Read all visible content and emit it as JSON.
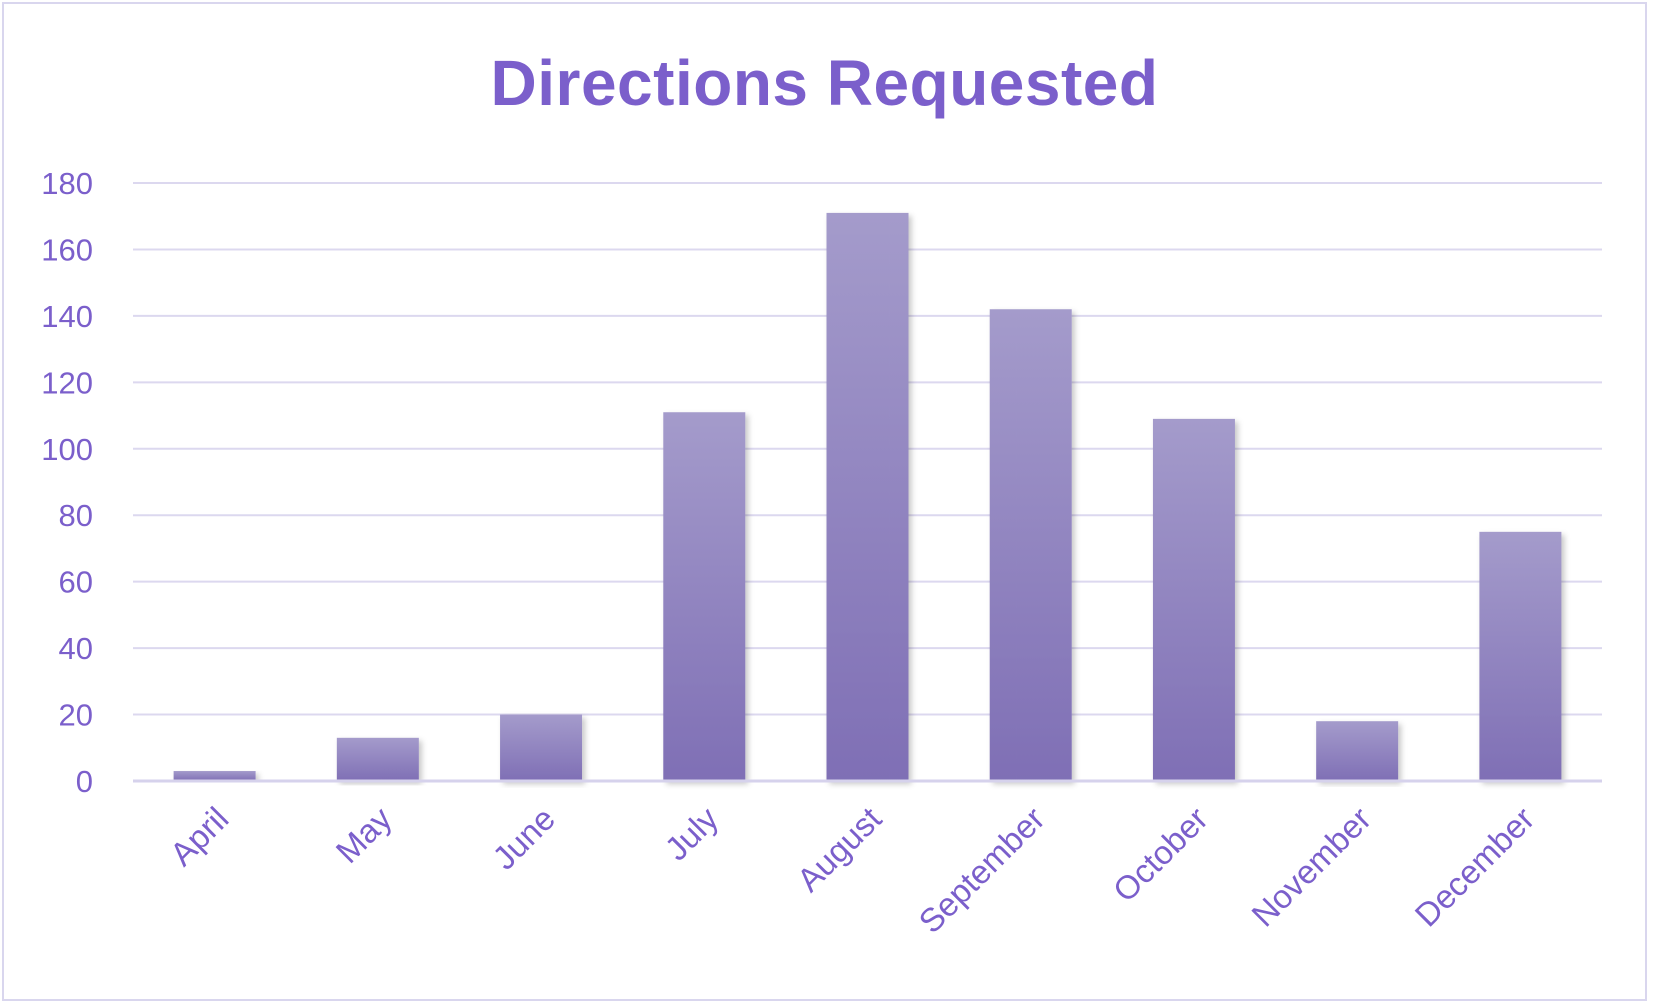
{
  "chart_data": {
    "type": "bar",
    "title": "Directions Requested",
    "xlabel": "",
    "ylabel": "",
    "categories": [
      "April",
      "May",
      "June",
      "July",
      "August",
      "September",
      "October",
      "November",
      "December"
    ],
    "values": [
      3,
      13,
      20,
      111,
      171,
      142,
      109,
      18,
      75
    ],
    "ylim": [
      0,
      180
    ],
    "yticks": [
      0,
      20,
      40,
      60,
      80,
      100,
      120,
      140,
      160,
      180
    ],
    "grid": true,
    "legend": "none",
    "colors": {
      "bar_top": "#a49bcb",
      "bar_bottom": "#7f6fb5",
      "text": "#7b5fcb",
      "gridline": "#dcd8ef",
      "axis": "#d6d2ec",
      "frame": "#d9d6ee"
    }
  }
}
